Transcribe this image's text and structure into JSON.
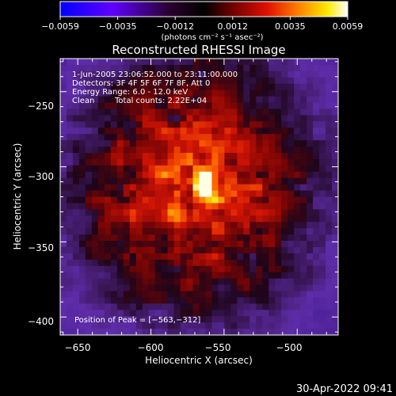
{
  "chart_data": {
    "type": "heatmap",
    "title": "Reconstructed RHESSI Image",
    "xlabel": "Heliocentric X (arcsec)",
    "ylabel": "Heliocentric Y (arcsec)",
    "xlim": [
      -662,
      -472
    ],
    "ylim": [
      -412,
      -228
    ],
    "xticks": [
      -650,
      -600,
      -550,
      -500
    ],
    "yticks": [
      -250,
      -300,
      -350,
      -400
    ],
    "x_tick_labels": [
      "−650",
      "−600",
      "−550",
      "−500"
    ],
    "y_tick_labels": [
      "−250",
      "−300",
      "−350",
      "−400"
    ],
    "colorbar": {
      "range": [
        -0.0059,
        0.0059
      ],
      "tick_labels": [
        "−0.0059",
        "−0.0035",
        "−0.0012",
        "0.0012",
        "0.0035",
        "0.0059"
      ],
      "unit_label": "(photons cm⁻² s⁻¹ asec⁻²)",
      "colormap": [
        "#0000ff",
        "#8000ff",
        "#000000",
        "#ff0000",
        "#ffff00",
        "#ffffff"
      ]
    },
    "annotations": [
      "1-Jun-2005 23:06:52.000 to 23:11:00.000",
      "Detectors: 3F 4F 5F 6F 7F 8F, Att 0",
      "Energy Range: 6.0 - 12.0 keV",
      "Clean",
      "Total counts: 2.22E+04"
    ],
    "peak": {
      "label": "Position of Peak = [−563,−312]",
      "x": -563,
      "y": -312
    },
    "grid": false
  },
  "footer": {
    "timestamp": "30-Apr-2022 09:41"
  }
}
